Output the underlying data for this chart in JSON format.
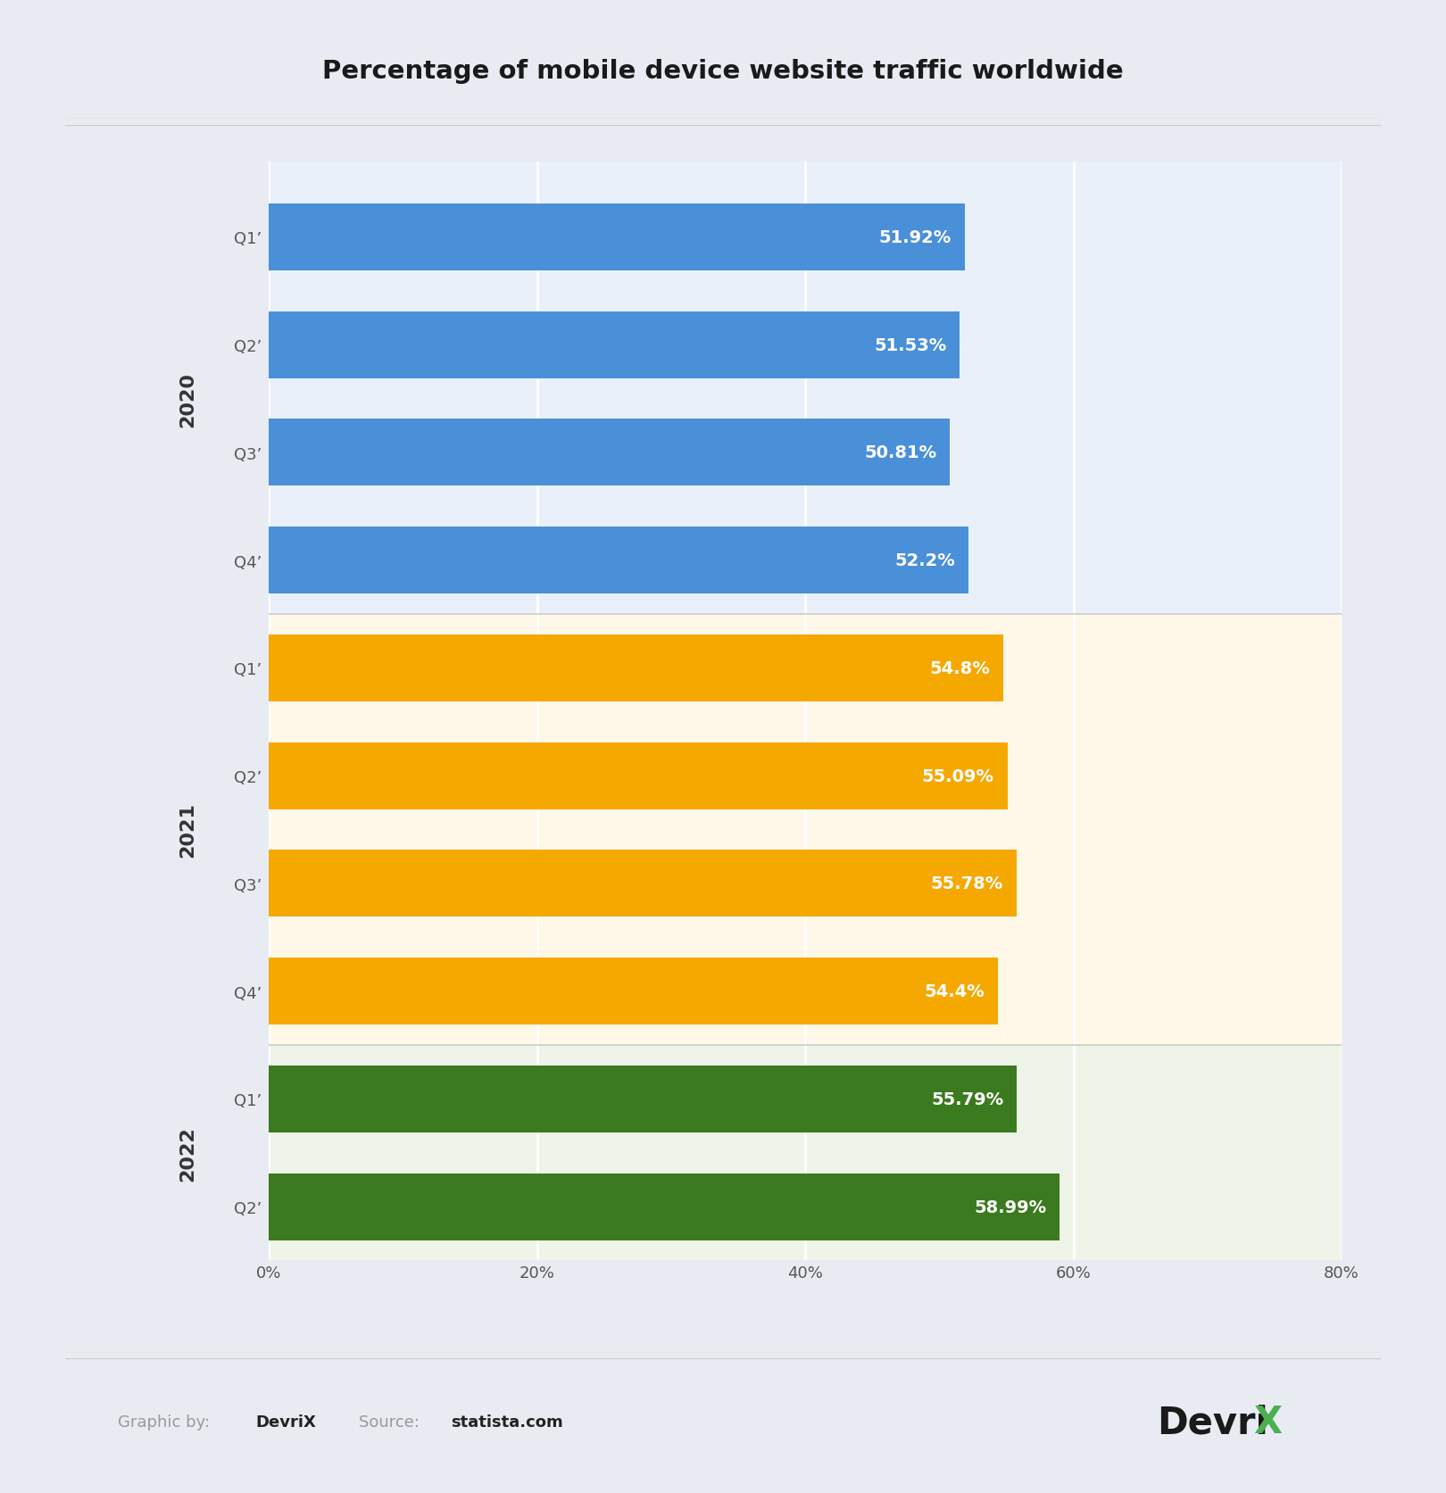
{
  "title": "Percentage of mobile device website traffic worldwide",
  "categories": [
    "Q1’",
    "Q2’",
    "Q3’",
    "Q4’",
    "Q1’",
    "Q2’",
    "Q3’",
    "Q4’",
    "Q1’",
    "Q2’"
  ],
  "values": [
    51.92,
    51.53,
    50.81,
    52.2,
    54.8,
    55.09,
    55.78,
    54.4,
    55.79,
    58.99
  ],
  "labels": [
    "51.92%",
    "51.53%",
    "50.81%",
    "52.2%",
    "54.8%",
    "55.09%",
    "55.78%",
    "54.4%",
    "55.79%",
    "58.99%"
  ],
  "bar_colors": [
    "#4A90D9",
    "#4A90D9",
    "#4A90D9",
    "#4A90D9",
    "#F5A800",
    "#F5A800",
    "#F5A800",
    "#F5A800",
    "#3B7A1E",
    "#3B7A1E"
  ],
  "year_labels": [
    "2020",
    "2021",
    "2022"
  ],
  "xlim": [
    0,
    80
  ],
  "xticks": [
    0,
    20,
    40,
    60,
    80
  ],
  "xticklabels": [
    "0%",
    "20%",
    "40%",
    "60%",
    "80%"
  ],
  "outer_bg": "#E8ECF2",
  "inner_bg": "#FFFFFF",
  "chart_bg": "#F2F4F8",
  "stripe_2020": "#EAF0FA",
  "stripe_2021": "#FFF8E8",
  "stripe_2022": "#EEF5E8",
  "footer_bg": "#E8ECF2",
  "title_fontsize": 21,
  "bar_label_fontsize": 14,
  "tick_fontsize": 13,
  "year_fontsize": 16,
  "footer_text_color": "#999999",
  "footer_bold_color": "#222222",
  "devrix_green": "#4CAF50"
}
